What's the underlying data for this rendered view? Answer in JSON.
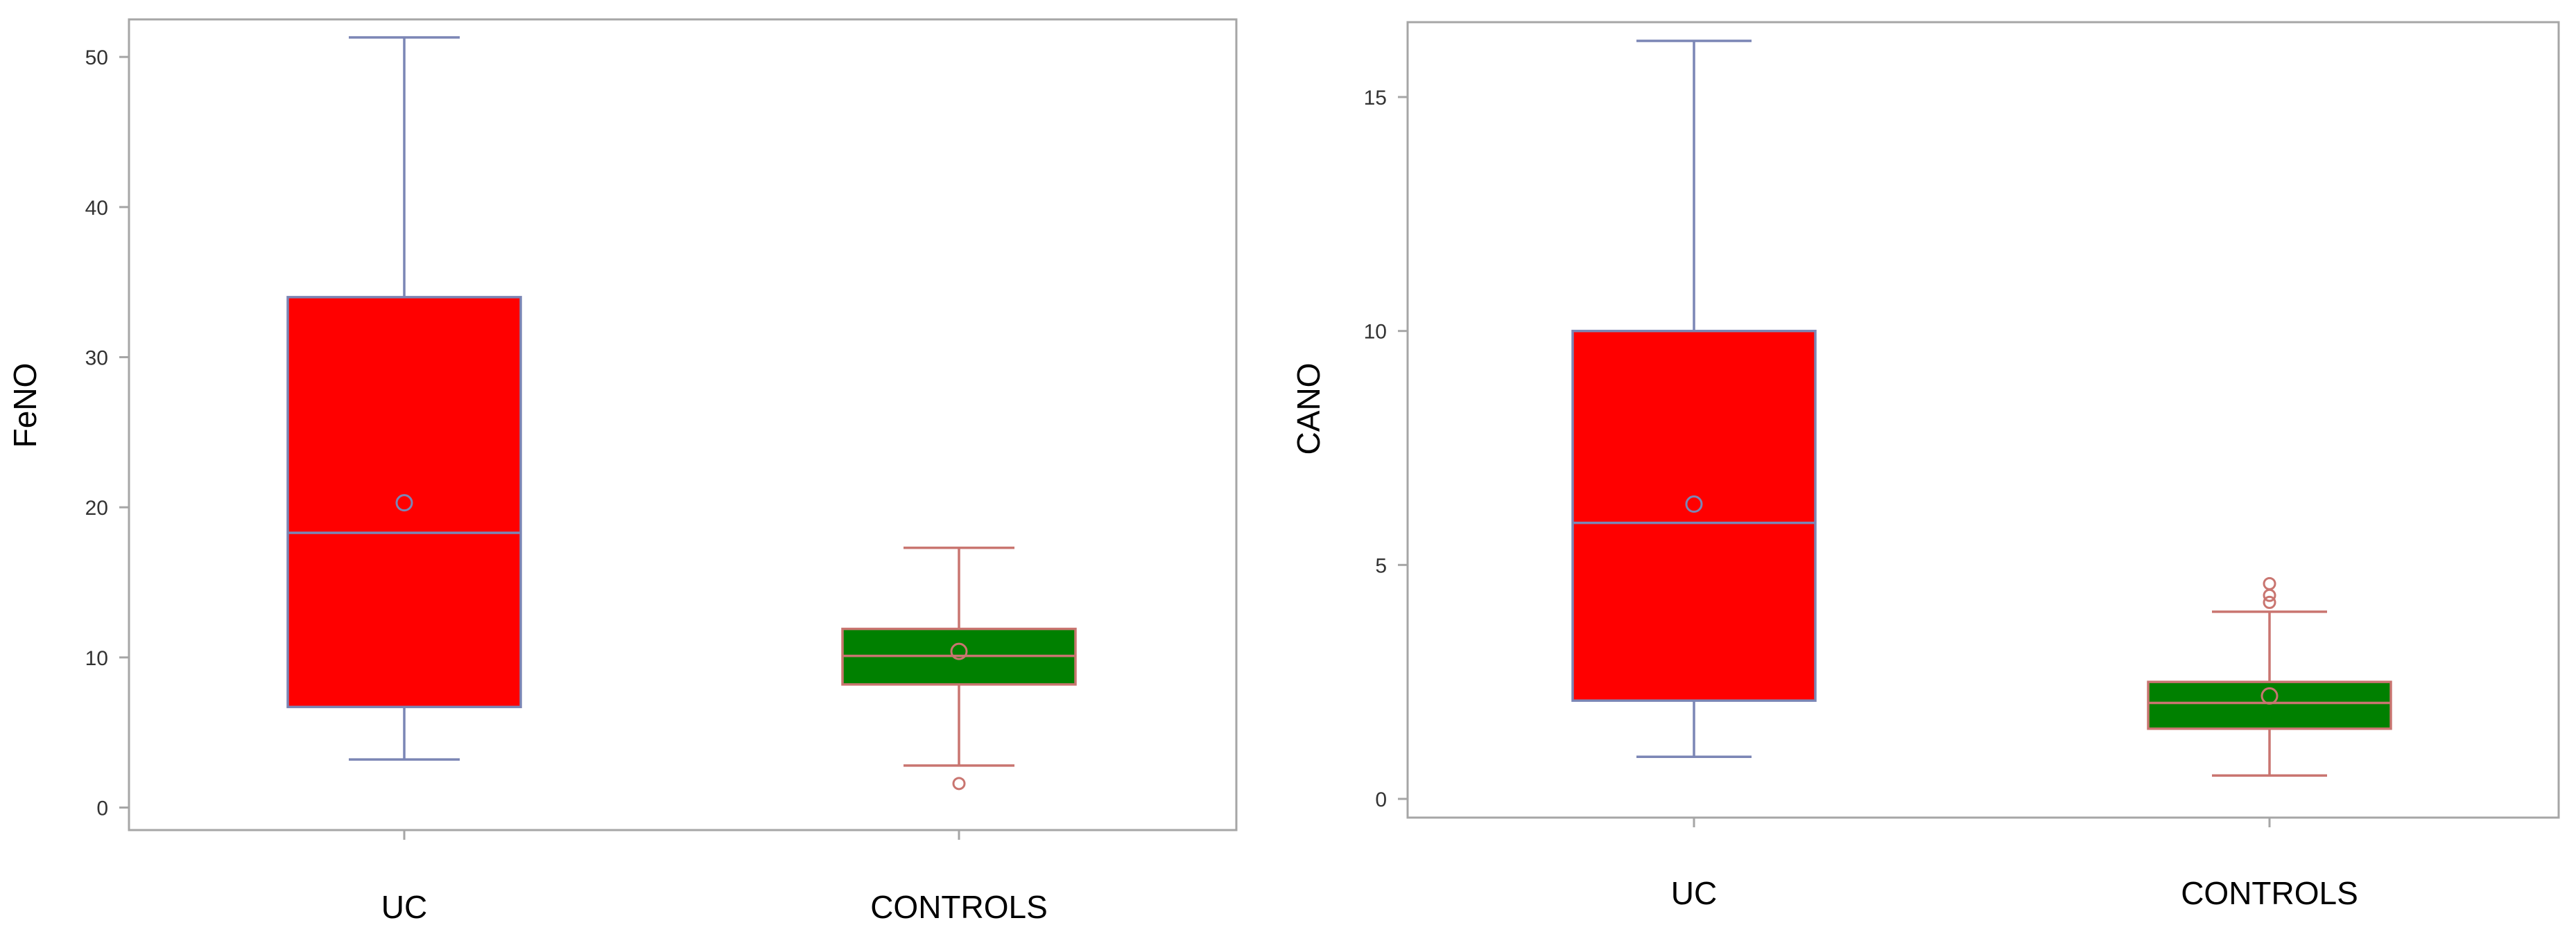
{
  "chart_data": [
    {
      "type": "box",
      "ylabel": "FeNO",
      "xlabel": "",
      "ylim": [
        -1.5,
        52.5
      ],
      "yticks": [
        0,
        10,
        20,
        30,
        40,
        50
      ],
      "categories": [
        "UC",
        "CONTROLS"
      ],
      "boxes": [
        {
          "category": "UC",
          "whisker_low": 3.2,
          "q1": 6.7,
          "median": 18.3,
          "q3": 34.0,
          "whisker_high": 51.3,
          "mean": 20.3,
          "outliers": [],
          "fill": "#ff0000",
          "line": "#7b86b5"
        },
        {
          "category": "CONTROLS",
          "whisker_low": 2.8,
          "q1": 8.2,
          "median": 10.1,
          "q3": 11.9,
          "whisker_high": 17.3,
          "mean": 10.4,
          "outliers": [
            1.6
          ],
          "fill": "#008000",
          "line": "#c97570"
        }
      ]
    },
    {
      "type": "box",
      "ylabel": "CANO",
      "xlabel": "",
      "ylim": [
        -0.4,
        16.6
      ],
      "yticks": [
        0,
        5,
        10,
        15
      ],
      "categories": [
        "UC",
        "CONTROLS"
      ],
      "boxes": [
        {
          "category": "UC",
          "whisker_low": 0.9,
          "q1": 2.1,
          "median": 5.9,
          "q3": 10.0,
          "whisker_high": 16.2,
          "mean": 6.3,
          "outliers": [],
          "fill": "#ff0000",
          "line": "#7b86b5"
        },
        {
          "category": "CONTROLS",
          "whisker_low": 0.5,
          "q1": 1.5,
          "median": 2.05,
          "q3": 2.5,
          "whisker_high": 4.0,
          "mean": 2.2,
          "outliers": [
            4.2,
            4.35,
            4.6
          ],
          "fill": "#008000",
          "line": "#c97570"
        }
      ]
    }
  ],
  "colors": {
    "frame": "#a6a6a6",
    "axis_text": "#333333"
  }
}
